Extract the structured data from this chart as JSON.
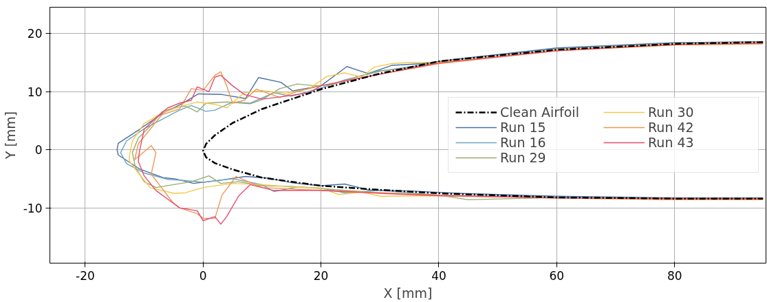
{
  "chart_data": {
    "type": "line",
    "xlabel": "X [mm]",
    "ylabel": "Y [mm]",
    "xlim": [
      -26,
      95.5
    ],
    "ylim": [
      -19.5,
      24.5
    ],
    "xticks": [
      -20,
      0,
      20,
      40,
      60,
      80
    ],
    "yticks": [
      -10,
      0,
      10,
      20
    ],
    "grid": true,
    "legend": "right",
    "marker": "none",
    "series": [
      {
        "name": "Clean Airfoil",
        "color": "#000000",
        "line_style": "dashdot",
        "x": [
          95,
          80,
          60,
          40,
          30,
          20,
          10,
          5,
          2,
          0.5,
          0,
          0.5,
          2,
          5,
          10,
          20,
          30,
          40,
          60,
          80,
          95
        ],
        "values": [
          18.5,
          18.2,
          17.2,
          15.2,
          13.1,
          10.4,
          7.0,
          4.6,
          2.5,
          1.0,
          -0.2,
          -1.3,
          -2.3,
          -3.4,
          -4.8,
          -6.2,
          -6.9,
          -7.5,
          -8.2,
          -8.4,
          -8.4
        ]
      },
      {
        "name": "Run 15",
        "color": "#4a6fa5",
        "x": [
          95,
          80,
          60,
          43.2,
          37.2,
          32,
          28,
          24.4,
          20,
          15.2,
          13.2,
          9.4,
          7.2,
          3.2,
          -0.8,
          -3.6,
          -6.8,
          -10.8,
          -14.4,
          -14.6,
          -14.4,
          -10.8,
          -6.8,
          -4.8,
          -1.6,
          3.2,
          7.2,
          11.2,
          15.2,
          20,
          24,
          28,
          35.2,
          43.2,
          60,
          80,
          95
        ],
        "values": [
          18.6,
          18.4,
          17.5,
          15.6,
          14.8,
          14.5,
          13.1,
          14.3,
          11.0,
          10.1,
          11.6,
          12.4,
          8.8,
          9.5,
          9.6,
          7.9,
          6.3,
          3.5,
          1.1,
          0,
          -0.9,
          -3.3,
          -4.8,
          -5.0,
          -5.8,
          -5.2,
          -4.6,
          -4.9,
          -5.7,
          -6.2,
          -5.9,
          -6.9,
          -7.1,
          -7.5,
          -8.0,
          -8.3,
          -8.3
        ]
      },
      {
        "name": "Run 16",
        "color": "#6aa4c0",
        "x": [
          95,
          80,
          60,
          40,
          30,
          24,
          20,
          15,
          12,
          8,
          5,
          2,
          0.5,
          -2,
          -4,
          -7,
          -10,
          -13,
          -14,
          -13,
          -10,
          -6,
          -3,
          0,
          5,
          10,
          12,
          16,
          20,
          24,
          30,
          40,
          60,
          80,
          95
        ],
        "values": [
          18.5,
          18.3,
          17.3,
          15.0,
          13.5,
          12.0,
          10.6,
          9.2,
          9.8,
          8.0,
          8.2,
          6.8,
          6.6,
          7.6,
          6.8,
          5.2,
          3.6,
          1.5,
          -0.5,
          -2.4,
          -4.0,
          -5.1,
          -5.3,
          -5.6,
          -5.0,
          -6.0,
          -7.2,
          -6.4,
          -6.6,
          -7.4,
          -7.0,
          -7.8,
          -8.1,
          -8.4,
          -8.4
        ]
      },
      {
        "name": "Run 29",
        "color": "#9aab70",
        "x": [
          95,
          80,
          60,
          40,
          35,
          30,
          26,
          22,
          19,
          16,
          13,
          10,
          8,
          4,
          0.5,
          -1,
          -3,
          -5,
          -7,
          -9,
          -11,
          -12,
          -11.5,
          -10,
          -8,
          -5,
          -2,
          1,
          3,
          6,
          10,
          15,
          20,
          30,
          40,
          45,
          60,
          80,
          95
        ],
        "values": [
          18.3,
          18.1,
          17.2,
          15.0,
          14.0,
          13.6,
          12.5,
          11.2,
          11.0,
          11.3,
          10.5,
          8.6,
          7.9,
          8.2,
          8.0,
          6.5,
          7.5,
          7.2,
          6.5,
          4.0,
          2.0,
          -0.5,
          -3.0,
          -5.5,
          -6.5,
          -6.0,
          -5.5,
          -4.5,
          -5.8,
          -5.5,
          -6.2,
          -6.3,
          -6.7,
          -7.4,
          -7.8,
          -8.6,
          -8.2,
          -8.5,
          -8.5
        ]
      },
      {
        "name": "Run 30",
        "color": "#f5c84a",
        "x": [
          95,
          80,
          60,
          40,
          35,
          32,
          29,
          27,
          24,
          21,
          18,
          14,
          10,
          7,
          4,
          2,
          -1,
          -4,
          -7,
          -10,
          -12,
          -12.5,
          -12.5,
          -11,
          -9,
          -5,
          -3,
          0,
          5,
          10,
          15,
          20,
          23,
          27,
          30,
          40,
          60,
          80,
          95
        ],
        "values": [
          18.4,
          18.2,
          17.2,
          15.0,
          15.0,
          14.8,
          14.2,
          12.5,
          13.2,
          12.6,
          10.5,
          9.7,
          10.2,
          9.8,
          7.2,
          7.8,
          8.2,
          7.4,
          6.3,
          4.5,
          1.5,
          -1.0,
          -2.0,
          -4.0,
          -6.5,
          -7.5,
          -7.4,
          -6.5,
          -5.8,
          -6.0,
          -6.4,
          -6.6,
          -7.7,
          -7.3,
          -8.0,
          -7.9,
          -8.3,
          -8.6,
          -8.6
        ]
      },
      {
        "name": "Run 42",
        "color": "#f0964f",
        "x": [
          95,
          80,
          60,
          40,
          30,
          20,
          16,
          13,
          9,
          7,
          5,
          4,
          3,
          2,
          0,
          -2,
          -4,
          -7,
          -9,
          -11,
          -11.6,
          -8.8,
          -8,
          -8.8,
          -5.2,
          -4,
          -1,
          0,
          2,
          3.2,
          5.6,
          10,
          20,
          30,
          40,
          60,
          80,
          95
        ],
        "values": [
          18.2,
          18.0,
          17.0,
          14.8,
          13.0,
          11.0,
          10.0,
          9.0,
          10.4,
          8.5,
          8.0,
          11.0,
          13.4,
          12.8,
          10.2,
          10.5,
          7.0,
          6.0,
          3.5,
          1.0,
          -1.7,
          0.7,
          -0.5,
          -4.2,
          -9.0,
          -10.0,
          -11.0,
          -11.8,
          -11.8,
          -7.8,
          -4.6,
          -6.5,
          -7.0,
          -7.4,
          -7.8,
          -8.3,
          -8.6,
          -8.6
        ]
      },
      {
        "name": "Run 43",
        "color": "#e8496e",
        "x": [
          95,
          80,
          60,
          40,
          30,
          20,
          18,
          14,
          10,
          7,
          5,
          3,
          2,
          1,
          -1,
          -2,
          -4,
          -6,
          -8,
          -10,
          -10.8,
          -11,
          -10,
          -8,
          -6,
          -4,
          -1,
          0,
          2,
          3,
          4,
          6,
          8,
          12,
          20,
          30,
          40,
          60,
          80,
          95
        ],
        "values": [
          18.3,
          18.1,
          17.0,
          14.9,
          13.0,
          11.0,
          9.8,
          9.2,
          8.7,
          9.5,
          11.0,
          12.8,
          12.5,
          10.0,
          10.8,
          8.5,
          8.0,
          7.2,
          5.5,
          3.5,
          -0.3,
          -2.0,
          -4.5,
          -7.0,
          -8.5,
          -10.0,
          -10.5,
          -12.2,
          -11.5,
          -12.8,
          -11.5,
          -8.0,
          -6.0,
          -7.0,
          -7.0,
          -7.5,
          -7.9,
          -8.3,
          -8.4,
          -8.4
        ]
      }
    ]
  }
}
